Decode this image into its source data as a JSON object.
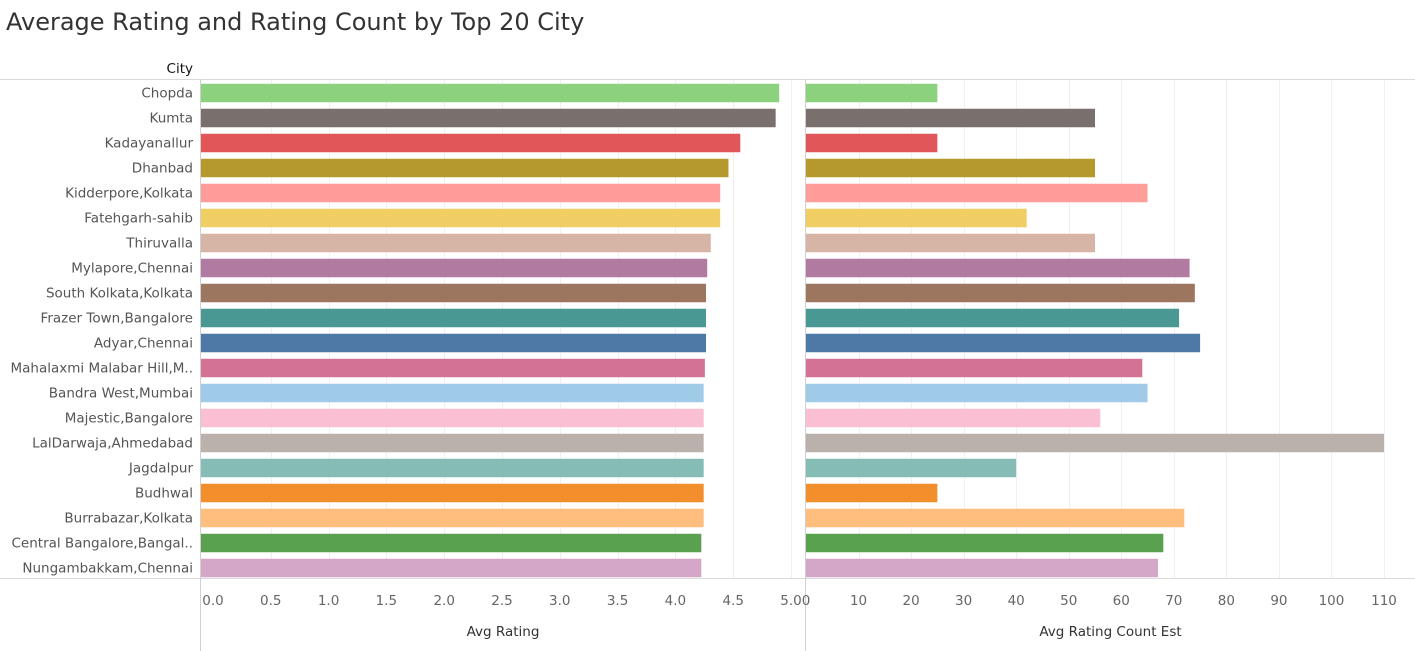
{
  "title": "Average Rating and Rating Count by Top 20 City",
  "chart_data": {
    "type": "bar",
    "orientation": "horizontal",
    "row_header": "City",
    "categories": [
      "Chopda",
      "Kumta",
      "Kadayanallur",
      "Dhanbad",
      "Kidderpore,Kolkata",
      "Fatehgarh-sahib",
      "Thiruvalla",
      "Mylapore,Chennai",
      "South Kolkata,Kolkata",
      "Frazer Town,Bangalore",
      "Adyar,Chennai",
      "Mahalaxmi Malabar Hill,M..",
      "Bandra West,Mumbai",
      "Majestic,Bangalore",
      "LalDarwaja,Ahmedabad",
      "Jagdalpur",
      "Budhwal",
      "Burrabazar,Kolkata",
      "Central Bangalore,Bangal..",
      "Nungambakkam,Chennai"
    ],
    "colors": [
      "#8cd17d",
      "#79706e",
      "#e15759",
      "#b6992d",
      "#ff9d9a",
      "#f1ce63",
      "#d7b5a6",
      "#b07aa1",
      "#9d7660",
      "#499894",
      "#4e79a7",
      "#d37295",
      "#a0cbe8",
      "#fabfd2",
      "#bab0ac",
      "#86bcb6",
      "#f28e2b",
      "#ffbe7d",
      "#59a14f",
      "#d4a6c8"
    ],
    "panels": [
      {
        "name": "Avg Rating",
        "xlabel": "Avg Rating",
        "xlim": [
          0,
          5
        ],
        "ticks": [
          "0.0",
          "0.5",
          "1.0",
          "1.5",
          "2.0",
          "2.5",
          "3.0",
          "3.5",
          "4.0",
          "4.5",
          "5.0"
        ],
        "tick_values": [
          0,
          0.5,
          1,
          1.5,
          2,
          2.5,
          3,
          3.5,
          4,
          4.5,
          5
        ],
        "values": [
          4.9,
          4.87,
          4.57,
          4.47,
          4.4,
          4.4,
          4.32,
          4.29,
          4.28,
          4.28,
          4.28,
          4.27,
          4.26,
          4.26,
          4.26,
          4.26,
          4.26,
          4.26,
          4.24,
          4.24
        ]
      },
      {
        "name": "Avg Rating Count Est",
        "xlabel": "Avg Rating Count Est",
        "xlim": [
          0,
          112
        ],
        "ticks": [
          "0",
          "10",
          "20",
          "30",
          "40",
          "50",
          "60",
          "70",
          "80",
          "90",
          "100",
          "110"
        ],
        "tick_values": [
          0,
          10,
          20,
          30,
          40,
          50,
          60,
          70,
          80,
          90,
          100,
          110
        ],
        "values": [
          25,
          55,
          25,
          55,
          65,
          42,
          55,
          73,
          74,
          71,
          75,
          64,
          65,
          56,
          110,
          40,
          25,
          72,
          68,
          67
        ]
      }
    ],
    "grid": true,
    "legend": "none"
  }
}
